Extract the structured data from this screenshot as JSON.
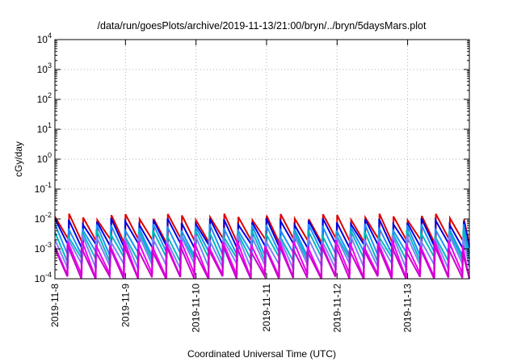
{
  "chart_data": {
    "type": "line",
    "title": "/data/run/goesPlots/archive/2019-11-13/21:00/bryn/../bryn/5daysMars.plot",
    "xlabel": "Coordinated Universal Time (UTC)",
    "ylabel": "cGy/day",
    "y_scale": "log",
    "ylim": [
      0.0001,
      10000
    ],
    "y_ticks": [
      {
        "base": "10",
        "exp": "-4",
        "value": 0.0001
      },
      {
        "base": "10",
        "exp": "-3",
        "value": 0.001
      },
      {
        "base": "10",
        "exp": "-2",
        "value": 0.01
      },
      {
        "base": "10",
        "exp": "-1",
        "value": 0.1
      },
      {
        "base": "10",
        "exp": "0",
        "value": 1
      },
      {
        "base": "10",
        "exp": "1",
        "value": 10
      },
      {
        "base": "10",
        "exp": "2",
        "value": 100
      },
      {
        "base": "10",
        "exp": "3",
        "value": 1000
      },
      {
        "base": "10",
        "exp": "4",
        "value": 10000
      }
    ],
    "xlim": [
      "2019-11-08",
      "2019-11-13T21:00"
    ],
    "x_ticks": [
      "2019-11-8",
      "2019-11-9",
      "2019-11-10",
      "2019-11-11",
      "2019-11-12",
      "2019-11-13"
    ],
    "grid": true,
    "sawtooth_period_days": 0.2,
    "series": [
      {
        "color": "#dd0000",
        "peak": 0.012,
        "trough": 0.0016
      },
      {
        "color": "#0000dd",
        "peak": 0.0085,
        "trough": 0.0011
      },
      {
        "color": "#1e90ff",
        "peak": 0.0055,
        "trough": 0.0006
      },
      {
        "color": "#00bbbb",
        "peak": 0.0035,
        "trough": 0.0004
      },
      {
        "color": "#8080ff",
        "peak": 0.0025,
        "trough": 0.00025
      },
      {
        "color": "#ee00ee",
        "peak": 0.0016,
        "trough": 0.00012
      },
      {
        "color": "#cc00cc",
        "peak": 0.0011,
        "trough": 0.0001
      }
    ]
  }
}
